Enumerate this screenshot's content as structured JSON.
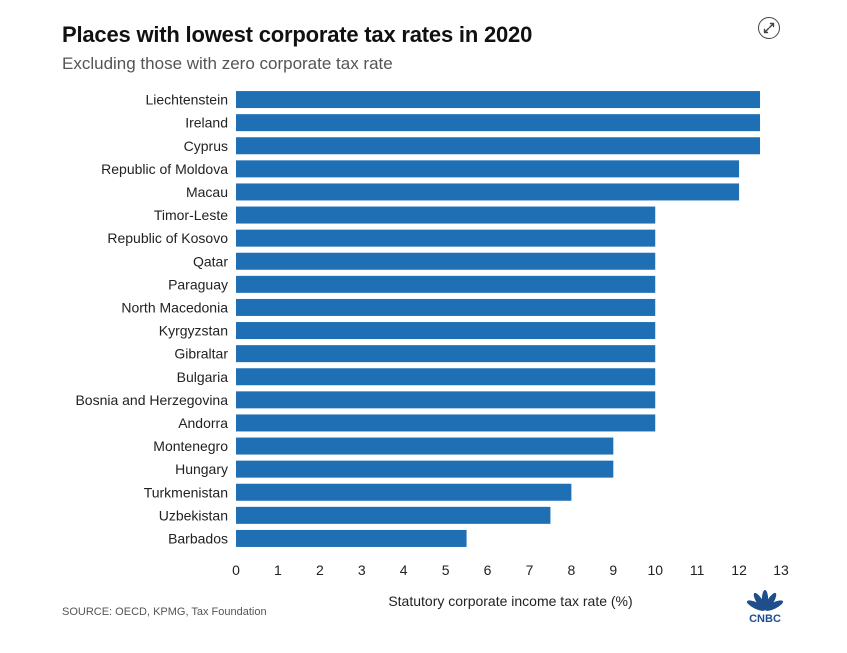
{
  "header": {
    "title": "Places with lowest corporate tax rates in 2020",
    "subtitle": "Excluding those with zero corporate tax rate"
  },
  "footer": {
    "source": "SOURCE: OECD, KPMG, Tax Foundation",
    "logo_text": "CNBC"
  },
  "icons": {
    "expand": "expand-arrows-icon"
  },
  "colors": {
    "bar": "#1f6fb5"
  },
  "chart_data": {
    "type": "bar",
    "orientation": "horizontal",
    "categories": [
      "Liechtenstein",
      "Ireland",
      "Cyprus",
      "Republic of Moldova",
      "Macau",
      "Timor-Leste",
      "Republic of Kosovo",
      "Qatar",
      "Paraguay",
      "North Macedonia",
      "Kyrgyzstan",
      "Gibraltar",
      "Bulgaria",
      "Bosnia and Herzegovina",
      "Andorra",
      "Montenegro",
      "Hungary",
      "Turkmenistan",
      "Uzbekistan",
      "Barbados"
    ],
    "values": [
      12.5,
      12.5,
      12.5,
      12,
      12,
      10,
      10,
      10,
      10,
      10,
      10,
      10,
      10,
      10,
      10,
      9,
      9,
      8,
      7.5,
      5.5
    ],
    "title": "Places with lowest corporate tax rates in 2020",
    "subtitle": "Excluding those with zero corporate tax rate",
    "xlabel": "Statutory corporate income tax rate (%)",
    "ylabel": "",
    "xlim": [
      0,
      13
    ],
    "xticks": [
      "0",
      "1",
      "2",
      "3",
      "4",
      "5",
      "6",
      "7",
      "8",
      "9",
      "10",
      "11",
      "12",
      "13"
    ],
    "grid": false,
    "legend": "none"
  }
}
